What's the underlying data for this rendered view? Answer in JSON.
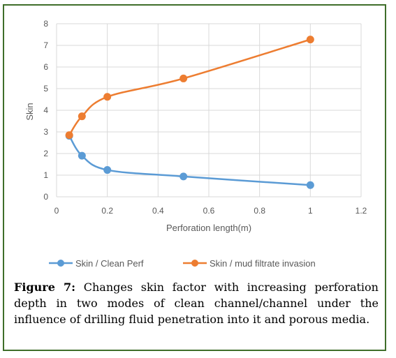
{
  "chart_data": {
    "type": "line",
    "xlabel": "Perforation length(m)",
    "ylabel": "Skin",
    "xlim": [
      0,
      1.2
    ],
    "ylim": [
      0,
      8
    ],
    "xticks": [
      0,
      0.2,
      0.4,
      0.6,
      0.8,
      1,
      1.2
    ],
    "xtick_labels": [
      "0",
      "0.2",
      "0.4",
      "0.6",
      "0.8",
      "1",
      "1.2"
    ],
    "yticks": [
      0,
      1,
      2,
      3,
      4,
      5,
      6,
      7,
      8
    ],
    "ytick_labels": [
      "0",
      "1",
      "2",
      "3",
      "4",
      "5",
      "6",
      "7",
      "8"
    ],
    "grid": true,
    "legend_position": "bottom",
    "series": [
      {
        "name": "Skin / Clean Perf",
        "color": "#5b9bd5",
        "x": [
          0.05,
          0.1,
          0.2,
          0.5,
          1
        ],
        "y": [
          2.82,
          1.9,
          1.24,
          0.94,
          0.54
        ]
      },
      {
        "name": "Skin / mud filtrate invasion",
        "color": "#ed7d31",
        "x": [
          0.05,
          0.1,
          0.2,
          0.5,
          1
        ],
        "y": [
          2.85,
          3.72,
          4.62,
          5.47,
          7.27
        ]
      }
    ]
  },
  "caption": {
    "label": "Figure 7:",
    "text": " Changes skin factor with increasing perforation depth in two modes of clean channel/channel under the influence of drilling fluid penetration into it and porous media."
  },
  "colors": {
    "frame_border": "#3f6e2a",
    "grid": "#d9d9d9",
    "tick_text": "#595959"
  }
}
